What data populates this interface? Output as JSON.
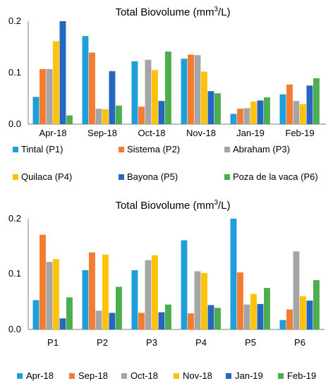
{
  "colors": {
    "Apr-18": "#1e9fd9",
    "Sep-18": "#f47c30",
    "Oct-18": "#a5a5a5",
    "Nov-18": "#fdc20a",
    "Jan-19": "#2467c0",
    "Feb-19": "#4cae4c",
    "axis": "#7f7f7f"
  },
  "chart_data": [
    {
      "type": "bar",
      "title": "Total Biovolume (mm",
      "title_sup": "3",
      "title_end": "/L)",
      "categories": [
        "Apr-18",
        "Sep-18",
        "Oct-18",
        "Nov-18",
        "Jan-19",
        "Feb-19"
      ],
      "yticks": [
        "0.2",
        "0.1",
        "0.0"
      ],
      "ylim": [
        0,
        0.2
      ],
      "grid": false,
      "legend_position": "bottom",
      "series": [
        {
          "name": "Tintal (P1)",
          "color_key": "Apr-18",
          "values": [
            0.053,
            0.171,
            0.122,
            0.127,
            0.02,
            0.058
          ]
        },
        {
          "name": "Sistema (P2)",
          "color_key": "Sep-18",
          "values": [
            0.107,
            0.139,
            0.034,
            0.135,
            0.03,
            0.077
          ]
        },
        {
          "name": "Abraham (P3)",
          "color_key": "Oct-18",
          "values": [
            0.107,
            0.03,
            0.125,
            0.134,
            0.031,
            0.045
          ]
        },
        {
          "name": "Quilaca (P4)",
          "color_key": "Nov-18",
          "values": [
            0.161,
            0.029,
            0.105,
            0.102,
            0.044,
            0.039
          ]
        },
        {
          "name": "Bayona (P5)",
          "color_key": "Jan-19",
          "values": [
            0.2,
            0.103,
            0.045,
            0.064,
            0.046,
            0.075
          ]
        },
        {
          "name": "Poza de la vaca (P6)",
          "color_key": "Feb-19",
          "values": [
            0.017,
            0.036,
            0.141,
            0.06,
            0.052,
            0.089
          ]
        }
      ]
    },
    {
      "type": "bar",
      "title": "Total Biovolume (mm",
      "title_sup": "3",
      "title_end": "/L)",
      "categories": [
        "P1",
        "P2",
        "P3",
        "P4",
        "P5",
        "P6"
      ],
      "yticks": [
        "0.2",
        "0.1",
        "0.0"
      ],
      "ylim": [
        0,
        0.2
      ],
      "grid": false,
      "legend_position": "bottom",
      "series": [
        {
          "name": "Apr-18",
          "color_key": "Apr-18",
          "values": [
            0.053,
            0.107,
            0.107,
            0.161,
            0.2,
            0.017
          ]
        },
        {
          "name": "Sep-18",
          "color_key": "Sep-18",
          "values": [
            0.171,
            0.139,
            0.03,
            0.029,
            0.103,
            0.036
          ]
        },
        {
          "name": "Oct-18",
          "color_key": "Oct-18",
          "values": [
            0.122,
            0.034,
            0.125,
            0.105,
            0.045,
            0.141
          ]
        },
        {
          "name": "Nov-18",
          "color_key": "Nov-18",
          "values": [
            0.127,
            0.135,
            0.134,
            0.102,
            0.064,
            0.06
          ]
        },
        {
          "name": "Jan-19",
          "color_key": "Jan-19",
          "values": [
            0.02,
            0.03,
            0.031,
            0.044,
            0.046,
            0.052
          ]
        },
        {
          "name": "Feb-19",
          "color_key": "Feb-19",
          "values": [
            0.058,
            0.077,
            0.045,
            0.039,
            0.075,
            0.089
          ]
        }
      ]
    }
  ]
}
